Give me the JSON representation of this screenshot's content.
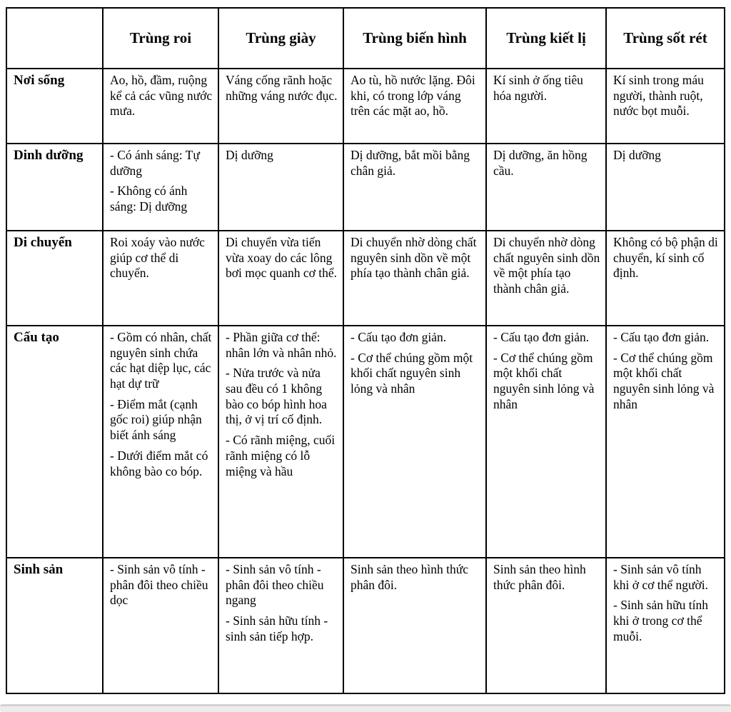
{
  "table": {
    "corner": "",
    "columns": [
      "Trùng roi",
      "Trùng giày",
      "Trùng biến hình",
      "Trùng kiết lị",
      "Trùng sốt rét"
    ],
    "rows": [
      {
        "label": "Nơi sống",
        "cells": [
          [
            "Ao, hồ, đầm, ruộng kể cả các vũng nước mưa."
          ],
          [
            "Váng cống rãnh hoặc những váng nước đục."
          ],
          [
            "Ao tù, hồ nước lặng. Đôi khi, có trong lớp váng trên các mặt ao, hồ."
          ],
          [
            "Kí sinh ở ống tiêu hóa người."
          ],
          [
            "Kí sinh trong máu người, thành ruột, nước bọt muỗi."
          ]
        ]
      },
      {
        "label": "Dinh dưỡng",
        "cells": [
          [
            "- Có ánh sáng: Tự dưỡng",
            "- Không có ánh sáng: Dị dưỡng"
          ],
          [
            "Dị dưỡng"
          ],
          [
            "Dị dưỡng, bắt mồi bằng chân giả."
          ],
          [
            "Dị dưỡng, ăn hồng cầu."
          ],
          [
            "Dị dưỡng"
          ]
        ]
      },
      {
        "label": "Di chuyển",
        "cells": [
          [
            "Roi xoáy vào nước giúp cơ thể di chuyển."
          ],
          [
            "Di chuyển vừa tiến vừa xoay do các lông bơi mọc quanh cơ thể."
          ],
          [
            "Di chuyển nhờ dòng chất nguyên sinh dồn về một phía tạo thành chân giả."
          ],
          [
            "Di chuyển nhờ dòng chất nguyên sinh dồn về một phía tạo thành chân giả."
          ],
          [
            "Không có bộ phận di chuyển, kí sinh cố định."
          ]
        ]
      },
      {
        "label": "Cấu tạo",
        "cells": [
          [
            "- Gồm có nhân, chất nguyên sinh chứa các hạt diệp lục, các hạt dự trữ",
            "- Điểm mắt (cạnh gốc roi) giúp nhận biết ánh sáng",
            "- Dưới điểm mắt có không bào co bóp."
          ],
          [
            "- Phần giữa cơ thể: nhân lớn và nhân nhỏ.",
            "- Nửa trước và nửa sau đều có 1 không bào co bóp hình hoa thị, ở vị trí cố định.",
            "- Có rãnh miệng, cuối rãnh miệng có lỗ miệng và hầu"
          ],
          [
            "- Cấu tạo đơn giản.",
            "- Cơ thể chúng gồm một khối chất nguyên sinh lỏng và nhân"
          ],
          [
            "- Cấu tạo đơn giản.",
            "- Cơ thể chúng gồm một khối chất nguyên sinh lỏng và nhân"
          ],
          [
            "- Cấu tạo đơn giản.",
            "- Cơ thể chúng gồm một khối chất nguyên sinh lỏng và nhân"
          ]
        ]
      },
      {
        "label": "Sinh sản",
        "cells": [
          [
            "- Sinh sản vô tính - phân đôi theo chiều dọc"
          ],
          [
            "- Sinh sản vô tính - phân đôi theo chiều ngang",
            "- Sinh sản hữu tính - sinh sản tiếp hợp."
          ],
          [
            "Sinh sản theo hình thức phân đôi."
          ],
          [
            "Sinh sản theo hình thức phân đôi."
          ],
          [
            "- Sinh sản vô tính khi ở cơ thể người.",
            "- Sinh sản hữu tính khi ở trong cơ thể muỗi."
          ]
        ]
      }
    ]
  }
}
